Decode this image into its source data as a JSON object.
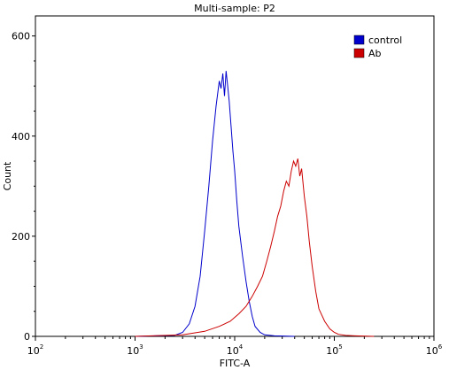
{
  "chart_data": {
    "type": "line",
    "title": "Multi-sample: P2",
    "xlabel": "FITC-A",
    "ylabel": "Count",
    "xscale": "log",
    "xlim": [
      100,
      1000000
    ],
    "ylim": [
      0,
      640
    ],
    "x_ticks": [
      {
        "base": "10",
        "exp": "2",
        "value": 100
      },
      {
        "base": "10",
        "exp": "3",
        "value": 1000
      },
      {
        "base": "10",
        "exp": "4",
        "value": 10000
      },
      {
        "base": "10",
        "exp": "5",
        "value": 100000
      },
      {
        "base": "10",
        "exp": "6",
        "value": 1000000
      }
    ],
    "y_ticks": [
      0,
      200,
      400,
      600
    ],
    "legend": "top-right",
    "grid": false,
    "series": [
      {
        "name": "control",
        "color": "#0000cc",
        "x": [
          1000,
          2500,
          3000,
          3500,
          4000,
          4500,
          5000,
          5500,
          6000,
          6500,
          7000,
          7300,
          7600,
          7900,
          8200,
          8500,
          8800,
          9200,
          9600,
          10000,
          10500,
          11000,
          12000,
          13000,
          14000,
          15000,
          16000,
          18000,
          20000,
          25000,
          40000
        ],
        "y": [
          0,
          2,
          8,
          25,
          60,
          120,
          210,
          300,
          390,
          460,
          510,
          495,
          525,
          480,
          530,
          500,
          470,
          420,
          370,
          330,
          270,
          220,
          160,
          110,
          70,
          40,
          20,
          8,
          3,
          1,
          0
        ]
      },
      {
        "name": "Ab",
        "color": "#cc0000",
        "x": [
          1000,
          3000,
          5000,
          7000,
          9000,
          11000,
          13000,
          15000,
          17000,
          19000,
          21000,
          23000,
          25000,
          27000,
          29000,
          31000,
          33000,
          35000,
          37000,
          39000,
          41000,
          43000,
          45000,
          47000,
          50000,
          53000,
          56000,
          60000,
          65000,
          70000,
          80000,
          90000,
          100000,
          110000,
          130000,
          160000,
          250000
        ],
        "y": [
          0,
          3,
          10,
          20,
          30,
          45,
          60,
          80,
          100,
          120,
          150,
          180,
          210,
          240,
          260,
          290,
          310,
          300,
          330,
          350,
          340,
          355,
          320,
          335,
          280,
          240,
          190,
          140,
          90,
          55,
          30,
          15,
          8,
          4,
          2,
          1,
          0
        ]
      }
    ]
  }
}
